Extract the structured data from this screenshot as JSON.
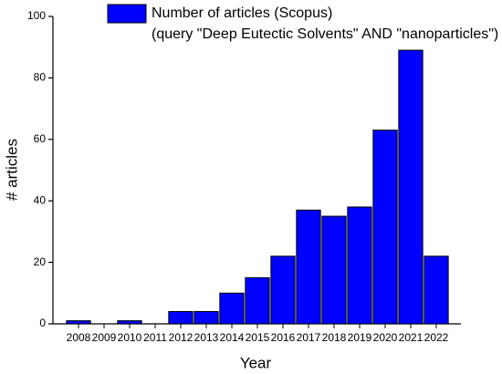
{
  "chart_data": {
    "type": "bar",
    "categories": [
      "2008",
      "2009",
      "2010",
      "2011",
      "2012",
      "2013",
      "2014",
      "2015",
      "2016",
      "2017",
      "2018",
      "2019",
      "2020",
      "2021",
      "2022"
    ],
    "series": [
      {
        "name": "Number of articles (Scopus)",
        "color": "#0000ff",
        "values": [
          1,
          0,
          1,
          0,
          4,
          4,
          10,
          15,
          22,
          37,
          35,
          38,
          63,
          89,
          22
        ]
      }
    ],
    "annotation": "(query \"Deep Eutectic Solvents\" AND \"nanoparticles\")",
    "x_label": "Year",
    "y_label": "# articles",
    "ylim": [
      0,
      100
    ],
    "yticks": [
      0,
      20,
      40,
      60,
      80,
      100
    ],
    "grid": false
  }
}
